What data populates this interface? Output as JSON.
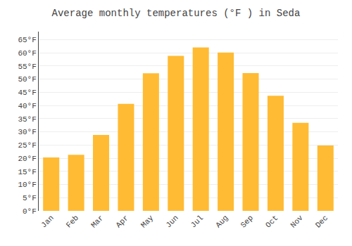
{
  "chart_data": {
    "type": "bar",
    "title": "Average monthly temperatures (°F ) in Seda",
    "categories": [
      "Jan",
      "Feb",
      "Mar",
      "Apr",
      "May",
      "Jun",
      "Jul",
      "Aug",
      "Sep",
      "Oct",
      "Nov",
      "Dec"
    ],
    "values": [
      20.3,
      21.3,
      28.8,
      40.6,
      52.2,
      58.8,
      62.0,
      60.1,
      52.3,
      43.7,
      33.4,
      24.8
    ],
    "color": "#FFBB33",
    "ylim": [
      0,
      68
    ],
    "yticks": [
      {
        "value": 0,
        "label": "0°F"
      },
      {
        "value": 5,
        "label": "5°F"
      },
      {
        "value": 10,
        "label": "10°F"
      },
      {
        "value": 15,
        "label": "15°F"
      },
      {
        "value": 20,
        "label": "20°F"
      },
      {
        "value": 25,
        "label": "25°F"
      },
      {
        "value": 30,
        "label": "30°F"
      },
      {
        "value": 35,
        "label": "35°F"
      },
      {
        "value": 40,
        "label": "40°F"
      },
      {
        "value": 45,
        "label": "45°F"
      },
      {
        "value": 50,
        "label": "50°F"
      },
      {
        "value": 55,
        "label": "55°F"
      },
      {
        "value": 60,
        "label": "60°F"
      },
      {
        "value": 65,
        "label": "65°F"
      }
    ],
    "grid": true
  }
}
